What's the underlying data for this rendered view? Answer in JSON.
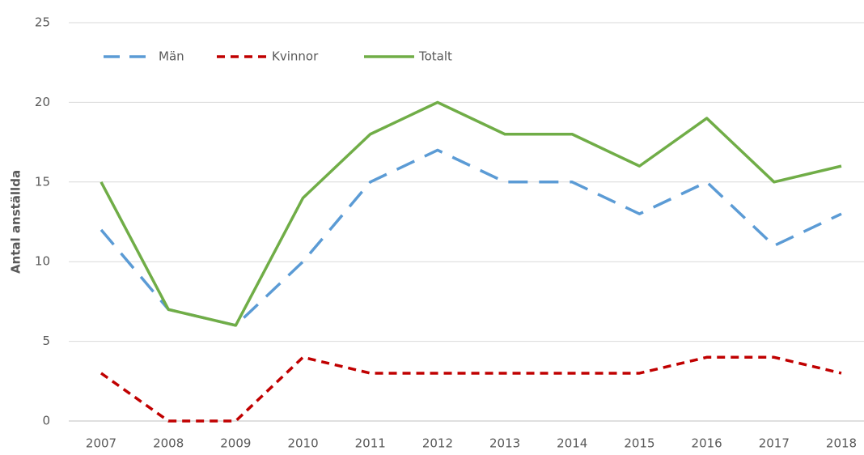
{
  "chart_data": {
    "type": "line",
    "y_label": "Antal anställda",
    "categories": [
      "2007",
      "2008",
      "2009",
      "2010",
      "2011",
      "2012",
      "2013",
      "2014",
      "2015",
      "2016",
      "2017",
      "2018"
    ],
    "series": [
      {
        "name": "Män",
        "color": "#5b9bd5",
        "dash": "long-dash",
        "values": [
          12,
          7,
          6,
          10,
          15,
          17,
          15,
          15,
          13,
          15,
          11,
          13
        ]
      },
      {
        "name": "Kvinnor",
        "color": "#c00000",
        "dash": "dash",
        "values": [
          3,
          0,
          0,
          4,
          3,
          3,
          3,
          3,
          3,
          4,
          4,
          3
        ]
      },
      {
        "name": "Totalt",
        "color": "#70ad47",
        "dash": "solid",
        "values": [
          15,
          7,
          6,
          14,
          18,
          20,
          18,
          18,
          16,
          19,
          15,
          16
        ]
      }
    ],
    "ylim": [
      0,
      25
    ],
    "yticks": [
      0,
      5,
      10,
      15,
      20,
      25
    ],
    "grid": true,
    "legend": "top-left"
  }
}
